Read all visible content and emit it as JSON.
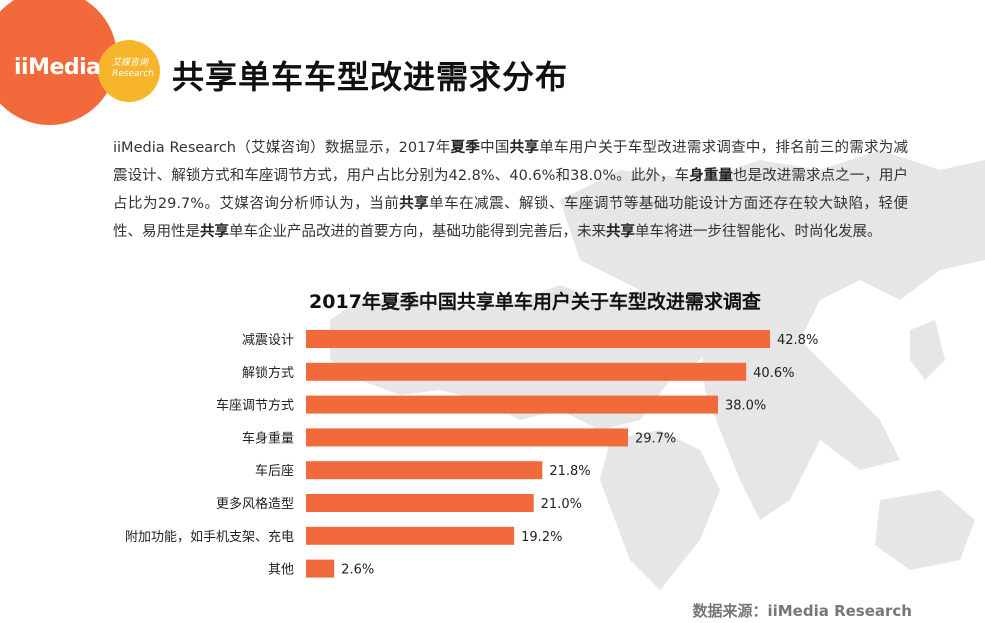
{
  "logo": {
    "brand": "iiMedia",
    "cn": "艾媒咨询",
    "en": "Research"
  },
  "page_title": "共享单车车型改进需求分布",
  "body": {
    "p1": "iiMedia Research（艾媒咨询）数据显示，2017年",
    "b1": "夏季",
    "p2": "中国",
    "b2": "共享",
    "p3": "单车用户关于车型改进需求调查中，排名前三的需求为减震设计、解锁方式和车座调节方式，用户占比分别为42.8%、40.6%和38.0%。此外，车",
    "b3": "身重量",
    "p4": "也是改进需求点之一，用户占比为29.7%。艾媒咨询分析师认为，当前",
    "b4": "共享",
    "p5": "单车在减震、解锁、车座调节等基础功能设计方面还存在较大缺陷，轻便性、易用性是",
    "b5": "共享",
    "p6": "单车企业产品改进的首要方向，基础功能得到完善后，未来",
    "b6": "共享",
    "p7": "单车将进一步往智能化、时尚化发展。"
  },
  "source": "数据来源：iiMedia Research",
  "colors": {
    "bar": "#f26a3b",
    "logo_orange": "#f26a3b",
    "logo_yellow": "#f7b52c",
    "map": "#e6e6e6"
  },
  "chart_data": {
    "type": "bar",
    "orientation": "horizontal",
    "title": "2017年夏季中国共享单车用户关于车型改进需求调查",
    "categories": [
      "减震设计",
      "解锁方式",
      "车座调节方式",
      "车身重量",
      "车后座",
      "更多风格造型",
      "附加功能，如手机支架、充电",
      "其他"
    ],
    "values": [
      42.8,
      40.6,
      38.0,
      29.7,
      21.8,
      21.0,
      19.2,
      2.6
    ],
    "value_labels": [
      "42.8%",
      "40.6%",
      "38.0%",
      "29.7%",
      "21.8%",
      "21.0%",
      "19.2%",
      "2.6%"
    ],
    "unit": "%",
    "xlim": [
      0,
      50
    ],
    "grid": false,
    "legend": "none"
  }
}
